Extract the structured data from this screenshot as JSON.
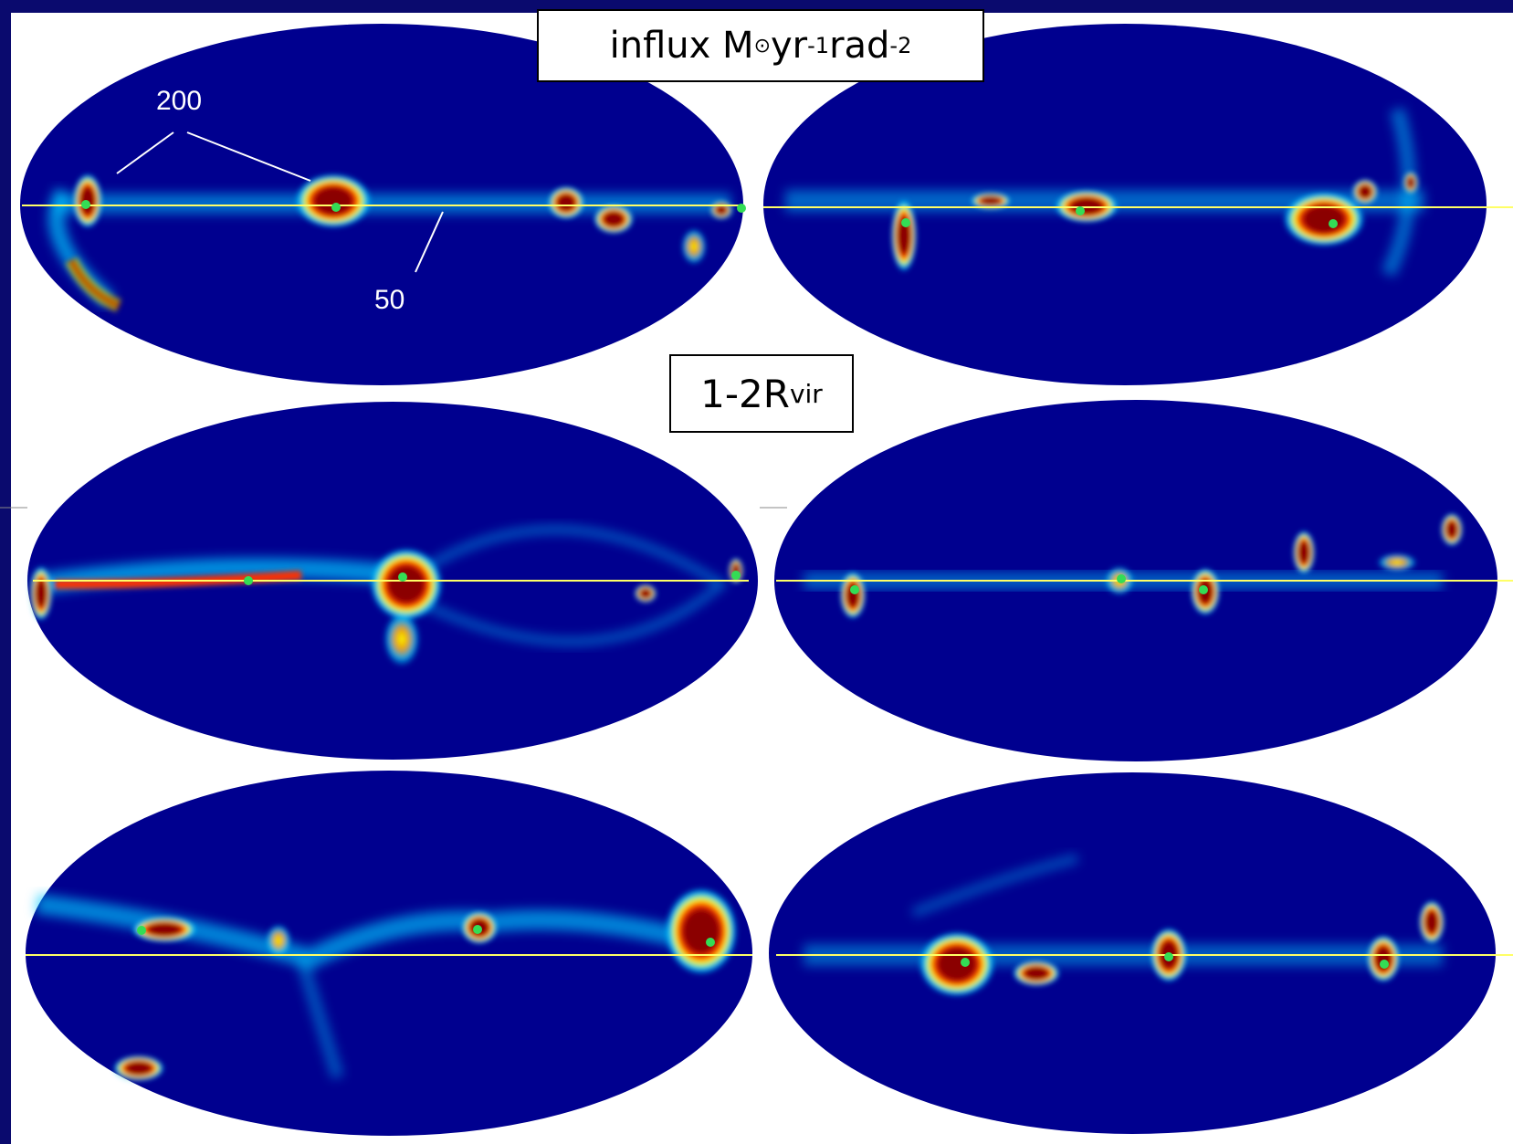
{
  "title": {
    "prefix": "influx M",
    "sun_symbol": "⊙",
    "yr": "yr",
    "yr_exp": "-1",
    "rad": "rad",
    "rad_exp": "-2"
  },
  "radius_label": {
    "text": "1-2R",
    "subscript": "vir"
  },
  "annotations": {
    "contour_200": "200",
    "contour_50": "50"
  },
  "colors": {
    "background": "#0a0a6e",
    "map_low": "#00008f",
    "map_mid": "#00c8ff",
    "map_high": "#ffff00",
    "map_peak": "#8b0000",
    "equator_line": "#ffff66",
    "center_marker": "#33dd55"
  },
  "maps": [
    {
      "id": "map-1",
      "projection": "aitoff"
    },
    {
      "id": "map-2",
      "projection": "aitoff"
    },
    {
      "id": "map-3",
      "projection": "aitoff"
    },
    {
      "id": "map-4",
      "projection": "aitoff"
    },
    {
      "id": "map-5",
      "projection": "aitoff"
    },
    {
      "id": "map-6",
      "projection": "aitoff"
    }
  ]
}
